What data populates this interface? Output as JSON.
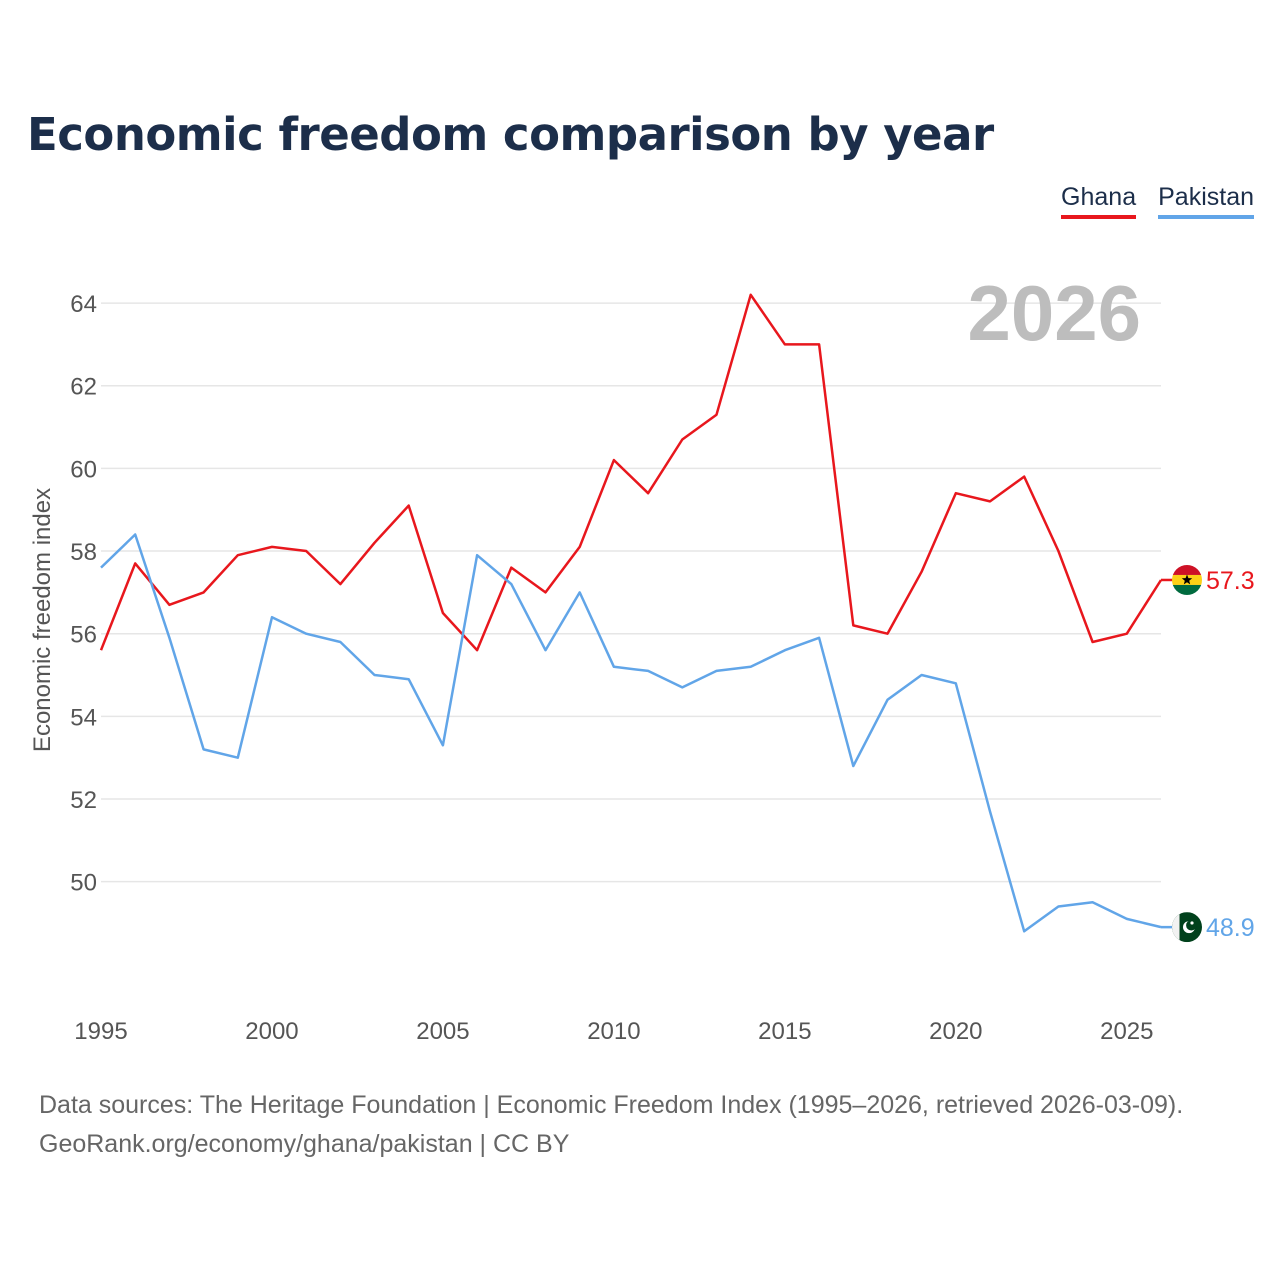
{
  "title": "Economic freedom comparison by year",
  "legend": [
    {
      "label": "Ghana",
      "color": "#e8171d"
    },
    {
      "label": "Pakistan",
      "color": "#61a5e8"
    }
  ],
  "source": {
    "line1": "Data sources: The Heritage Foundation | Economic Freedom Index (1995–2026, retrieved 2026-03-09).",
    "line2": "GeoRank.org/economy/ghana/pakistan | CC BY"
  },
  "chart_data": {
    "type": "line",
    "title": "Economic freedom comparison by year",
    "xlabel": "",
    "ylabel": "Economic freedom index",
    "year_label": "2026",
    "x": [
      1995,
      1996,
      1997,
      1998,
      1999,
      2000,
      2001,
      2002,
      2003,
      2004,
      2005,
      2006,
      2007,
      2008,
      2009,
      2010,
      2011,
      2012,
      2013,
      2014,
      2015,
      2016,
      2017,
      2018,
      2019,
      2020,
      2021,
      2022,
      2023,
      2024,
      2025,
      2026
    ],
    "xlim": [
      1995,
      2026
    ],
    "ylim": [
      47.5,
      64.8
    ],
    "x_ticks": [
      1995,
      2000,
      2005,
      2010,
      2015,
      2020,
      2025
    ],
    "y_ticks": [
      50,
      52,
      54,
      56,
      58,
      60,
      62,
      64
    ],
    "grid": true,
    "series": [
      {
        "name": "Ghana",
        "color": "#e8171d",
        "end_label": "57.3",
        "flag": "ghana-flag",
        "values": [
          55.6,
          57.7,
          56.7,
          57.0,
          57.9,
          58.1,
          58.0,
          57.2,
          58.2,
          59.1,
          56.5,
          55.6,
          57.6,
          57.0,
          58.1,
          60.2,
          59.4,
          60.7,
          61.3,
          64.2,
          63.0,
          63.0,
          56.2,
          56.0,
          57.5,
          59.4,
          59.2,
          59.8,
          58.0,
          55.8,
          56.0,
          57.3
        ]
      },
      {
        "name": "Pakistan",
        "color": "#61a5e8",
        "end_label": "48.9",
        "flag": "pakistan-flag",
        "values": [
          57.6,
          58.4,
          55.9,
          53.2,
          53.0,
          56.4,
          56.0,
          55.8,
          55.0,
          54.9,
          53.3,
          57.9,
          57.2,
          55.6,
          57.0,
          55.2,
          55.1,
          54.7,
          55.1,
          55.2,
          55.6,
          55.9,
          52.8,
          54.4,
          55.0,
          54.8,
          51.7,
          48.8,
          49.4,
          49.5,
          49.1,
          48.9
        ]
      }
    ]
  }
}
